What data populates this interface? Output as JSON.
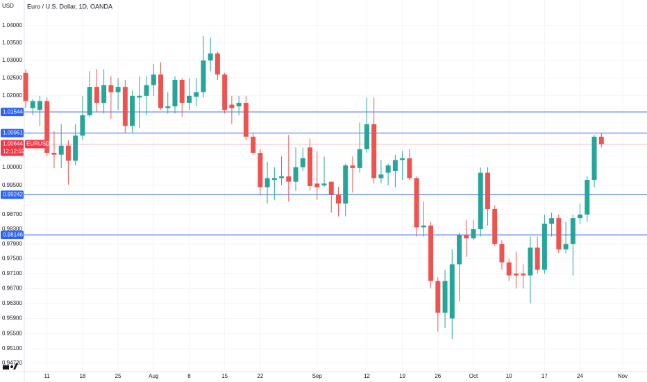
{
  "chart_data": {
    "type": "candlestick",
    "title": "Euro / U.S. Dollar, 1D, OANDA",
    "y_axis_label": "USD",
    "log_scale": true,
    "grid": true,
    "up_color": "#26a69a",
    "down_color": "#ef5350",
    "ylim": [
      0.945,
      1.0474
    ],
    "yticks": [
      {
        "value": 1.04,
        "label": "1.04000"
      },
      {
        "value": 1.035,
        "label": "1.03500"
      },
      {
        "value": 1.03,
        "label": "1.03000"
      },
      {
        "value": 1.025,
        "label": "1.02500"
      },
      {
        "value": 1.02,
        "label": "1.02000"
      },
      {
        "value": 1.0,
        "label": "1.00000"
      },
      {
        "value": 0.995,
        "label": "0.99500"
      },
      {
        "value": 0.987,
        "label": "0.98700"
      },
      {
        "value": 0.983,
        "label": "0.98300"
      },
      {
        "value": 0.979,
        "label": "0.97900"
      },
      {
        "value": 0.975,
        "label": "0.97500"
      },
      {
        "value": 0.971,
        "label": "0.97100"
      },
      {
        "value": 0.967,
        "label": "0.96700"
      },
      {
        "value": 0.963,
        "label": "0.96300"
      },
      {
        "value": 0.959,
        "label": "0.95900"
      },
      {
        "value": 0.955,
        "label": "0.95500"
      },
      {
        "value": 0.951,
        "label": "0.95100"
      },
      {
        "value": 0.9472,
        "label": "0.94720"
      }
    ],
    "categories": [
      null,
      null,
      null,
      "11",
      null,
      null,
      null,
      null,
      "18",
      null,
      null,
      null,
      null,
      "25",
      null,
      null,
      null,
      null,
      "Aug",
      null,
      null,
      null,
      null,
      "8",
      null,
      null,
      null,
      null,
      "15",
      null,
      null,
      null,
      null,
      "22",
      null,
      null,
      null,
      null,
      null,
      null,
      null,
      "Sep",
      null,
      null,
      null,
      null,
      null,
      null,
      "12",
      null,
      null,
      null,
      null,
      "19",
      null,
      null,
      null,
      null,
      "26",
      null,
      null,
      null,
      null,
      "Oct",
      null,
      null,
      null,
      null,
      "10",
      null,
      null,
      null,
      null,
      "17",
      null,
      null,
      null,
      null,
      "24",
      null,
      null,
      null,
      null,
      null,
      "Nov"
    ],
    "open": [
      1.0265,
      1.0165,
      1.016,
      1.0185,
      1.004,
      1.0035,
      1.006,
      1.0018,
      1.0088,
      1.0145,
      1.0225,
      1.018,
      1.023,
      1.021,
      1.0225,
      1.0115,
      1.0195,
      1.02,
      1.023,
      1.026,
      1.0165,
      1.017,
      1.0245,
      1.018,
      1.0197,
      1.021,
      1.03,
      1.032,
      1.026,
      1.0175,
      1.017,
      1.018,
      1.0085,
      1.004,
      0.9945,
      0.9965,
      0.997,
      0.9975,
      0.996,
      1.0,
      1.0055,
      0.9955,
      0.995,
      0.996,
      0.9925,
      0.99,
      1.0005,
      0.9998,
      1.005,
      1.012,
      0.997,
      0.9985,
      0.999,
      1.002,
      1.0025,
      0.997,
      0.9835,
      0.984,
      0.969,
      0.9605,
      0.959,
      0.9735,
      0.9815,
      0.9805,
      0.983,
      0.9985,
      0.9885,
      0.979,
      0.974,
      0.971,
      0.971,
      0.9705,
      0.978,
      0.972,
      0.9845,
      0.986,
      0.9775,
      0.979,
      0.986,
      0.987,
      0.9965,
      1.0085,
      null,
      null,
      null
    ],
    "high": [
      1.0275,
      1.019,
      1.02,
      1.0195,
      1.01,
      1.012,
      1.0075,
      1.012,
      1.02,
      1.027,
      1.0275,
      1.0275,
      1.0255,
      1.025,
      1.0245,
      1.0215,
      1.0255,
      1.0255,
      1.029,
      1.0295,
      1.021,
      1.0255,
      1.025,
      1.025,
      1.025,
      1.037,
      1.0365,
      1.0325,
      1.0265,
      1.02,
      1.02,
      1.02,
      1.0095,
      1.005,
      1.0015,
      1.0,
      1.003,
      1.009,
      1.0055,
      1.0055,
      1.008,
      1.0045,
      1.003,
      0.996,
      0.9945,
      1.001,
      1.003,
      1.0125,
      1.0195,
      1.0195,
      1.002,
      1.001,
      1.0035,
      1.0045,
      1.005,
      0.9975,
      0.9905,
      0.985,
      0.97,
      0.972,
      0.9775,
      0.982,
      0.9855,
      0.9855,
      0.9999,
      1.0,
      0.9895,
      0.98,
      0.975,
      0.977,
      0.9735,
      0.981,
      0.981,
      0.987,
      0.9875,
      0.987,
      0.985,
      0.987,
      0.99,
      0.9975,
      1.009,
      1.0095,
      null,
      null,
      null
    ],
    "low": [
      1.0165,
      1.0145,
      1.0115,
      1.003,
      0.9998,
      0.9998,
      0.9952,
      1.0005,
      1.0075,
      1.014,
      1.0155,
      1.015,
      1.0135,
      1.016,
      1.0095,
      1.0095,
      1.011,
      1.0145,
      1.02,
      1.016,
      1.015,
      1.015,
      1.014,
      1.016,
      1.017,
      1.0195,
      1.027,
      1.0245,
      1.015,
      1.012,
      1.0145,
      1.0075,
      1.0035,
      0.9925,
      0.99,
      0.991,
      0.995,
      0.9905,
      0.9935,
      0.999,
      0.9935,
      0.991,
      0.9945,
      0.9875,
      0.9865,
      0.9865,
      0.993,
      0.9985,
      1.004,
      0.9955,
      0.9955,
      0.995,
      0.9945,
      0.9965,
      0.9965,
      0.981,
      0.981,
      0.967,
      0.9555,
      0.9565,
      0.9535,
      0.9635,
      0.9755,
      0.98,
      0.981,
      0.984,
      0.9785,
      0.972,
      0.969,
      0.967,
      0.967,
      0.963,
      0.971,
      0.971,
      0.981,
      0.9765,
      0.9765,
      0.9705,
      0.9845,
      0.985,
      0.9945,
      1.0055,
      null,
      null,
      null
    ],
    "close": [
      1.0185,
      1.0185,
      1.0185,
      1.004,
      1.0035,
      1.006,
      1.0018,
      1.0088,
      1.0145,
      1.0225,
      1.018,
      1.023,
      1.021,
      1.0225,
      1.0115,
      1.02,
      1.02,
      1.023,
      1.026,
      1.0165,
      1.017,
      1.0245,
      1.018,
      1.02,
      1.021,
      1.03,
      1.032,
      1.026,
      1.016,
      1.0165,
      1.018,
      1.0085,
      1.004,
      0.9945,
      0.997,
      0.997,
      0.9975,
      0.996,
      1.0,
      1.0025,
      0.9948,
      0.9945,
      0.9955,
      0.9925,
      0.99,
      1.0005,
      0.9998,
      1.005,
      1.012,
      0.997,
      0.998,
      1.0005,
      1.002,
      1.0025,
      0.997,
      0.9835,
      0.984,
      0.969,
      0.9605,
      0.969,
      0.9735,
      0.9815,
      0.9805,
      0.983,
      0.9985,
      0.9885,
      0.979,
      0.974,
      0.9705,
      0.9705,
      0.9705,
      0.978,
      0.972,
      0.9845,
      0.986,
      0.9775,
      0.979,
      0.986,
      0.987,
      0.9965,
      1.0085,
      1.0064,
      null,
      null,
      null
    ],
    "hlines": [
      {
        "value": 1.01544,
        "color": "#2962ff"
      },
      {
        "value": 1.00951,
        "color": "#2962ff"
      },
      {
        "value": 0.99242,
        "color": "#2962ff"
      },
      {
        "value": 0.98146,
        "color": "#2962ff"
      }
    ],
    "last_price": {
      "value": 1.00644,
      "symbol": "EURUSD",
      "countdown": "12:12:59",
      "color": "#f23645"
    }
  }
}
